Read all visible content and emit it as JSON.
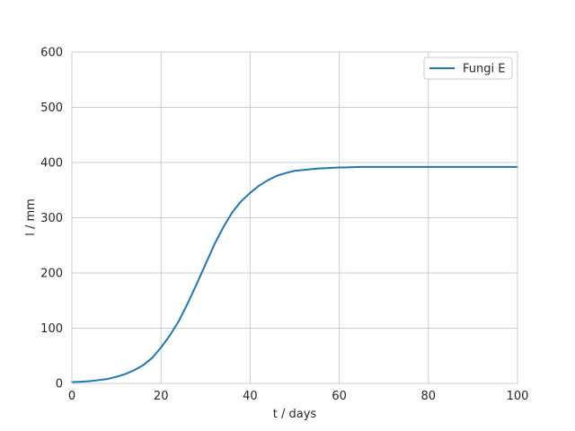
{
  "chart_data": {
    "type": "line",
    "title": "",
    "xlabel": "t / days",
    "ylabel": "l / mm",
    "xlim": [
      0,
      100
    ],
    "ylim": [
      0,
      600
    ],
    "xticks": [
      0,
      20,
      40,
      60,
      80,
      100
    ],
    "yticks": [
      0,
      100,
      200,
      300,
      400,
      500,
      600
    ],
    "grid": true,
    "legend_position": "upper right",
    "series": [
      {
        "name": "Fungi E",
        "color": "#1f77b4",
        "x": [
          0,
          2,
          4,
          6,
          8,
          10,
          12,
          14,
          16,
          18,
          20,
          22,
          24,
          26,
          28,
          30,
          32,
          34,
          36,
          38,
          40,
          42,
          44,
          46,
          48,
          50,
          55,
          60,
          65,
          70,
          75,
          80,
          85,
          90,
          95,
          100
        ],
        "y": [
          2.5,
          3,
          4,
          6,
          8,
          12,
          17,
          24,
          33,
          46,
          65,
          87,
          113,
          145,
          180,
          216,
          252,
          283,
          310,
          330,
          345,
          358,
          368,
          376,
          381,
          385,
          389,
          391,
          392,
          392,
          392,
          392,
          392,
          392,
          392,
          392
        ]
      }
    ]
  }
}
